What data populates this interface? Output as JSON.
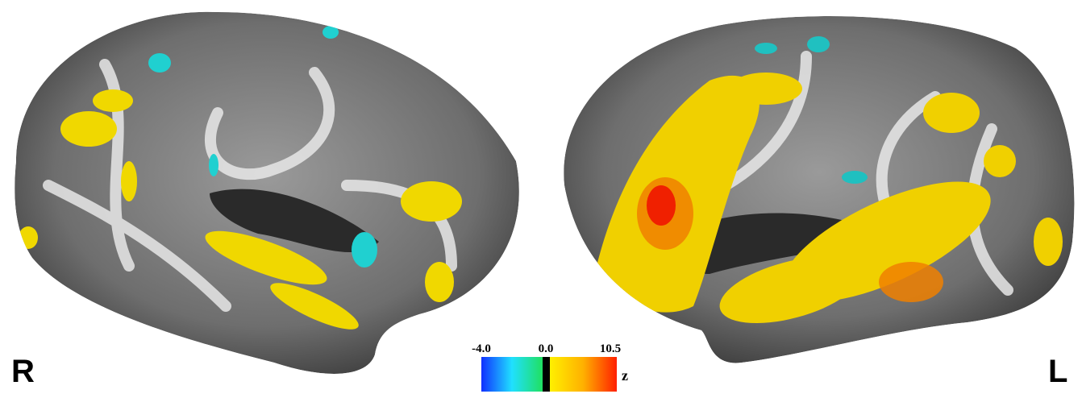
{
  "left_label": "R",
  "right_label": "L",
  "colorbar": {
    "min_label": "-4.0",
    "mid_label": "0.0",
    "max_label": "10.5",
    "unit": "z"
  }
}
